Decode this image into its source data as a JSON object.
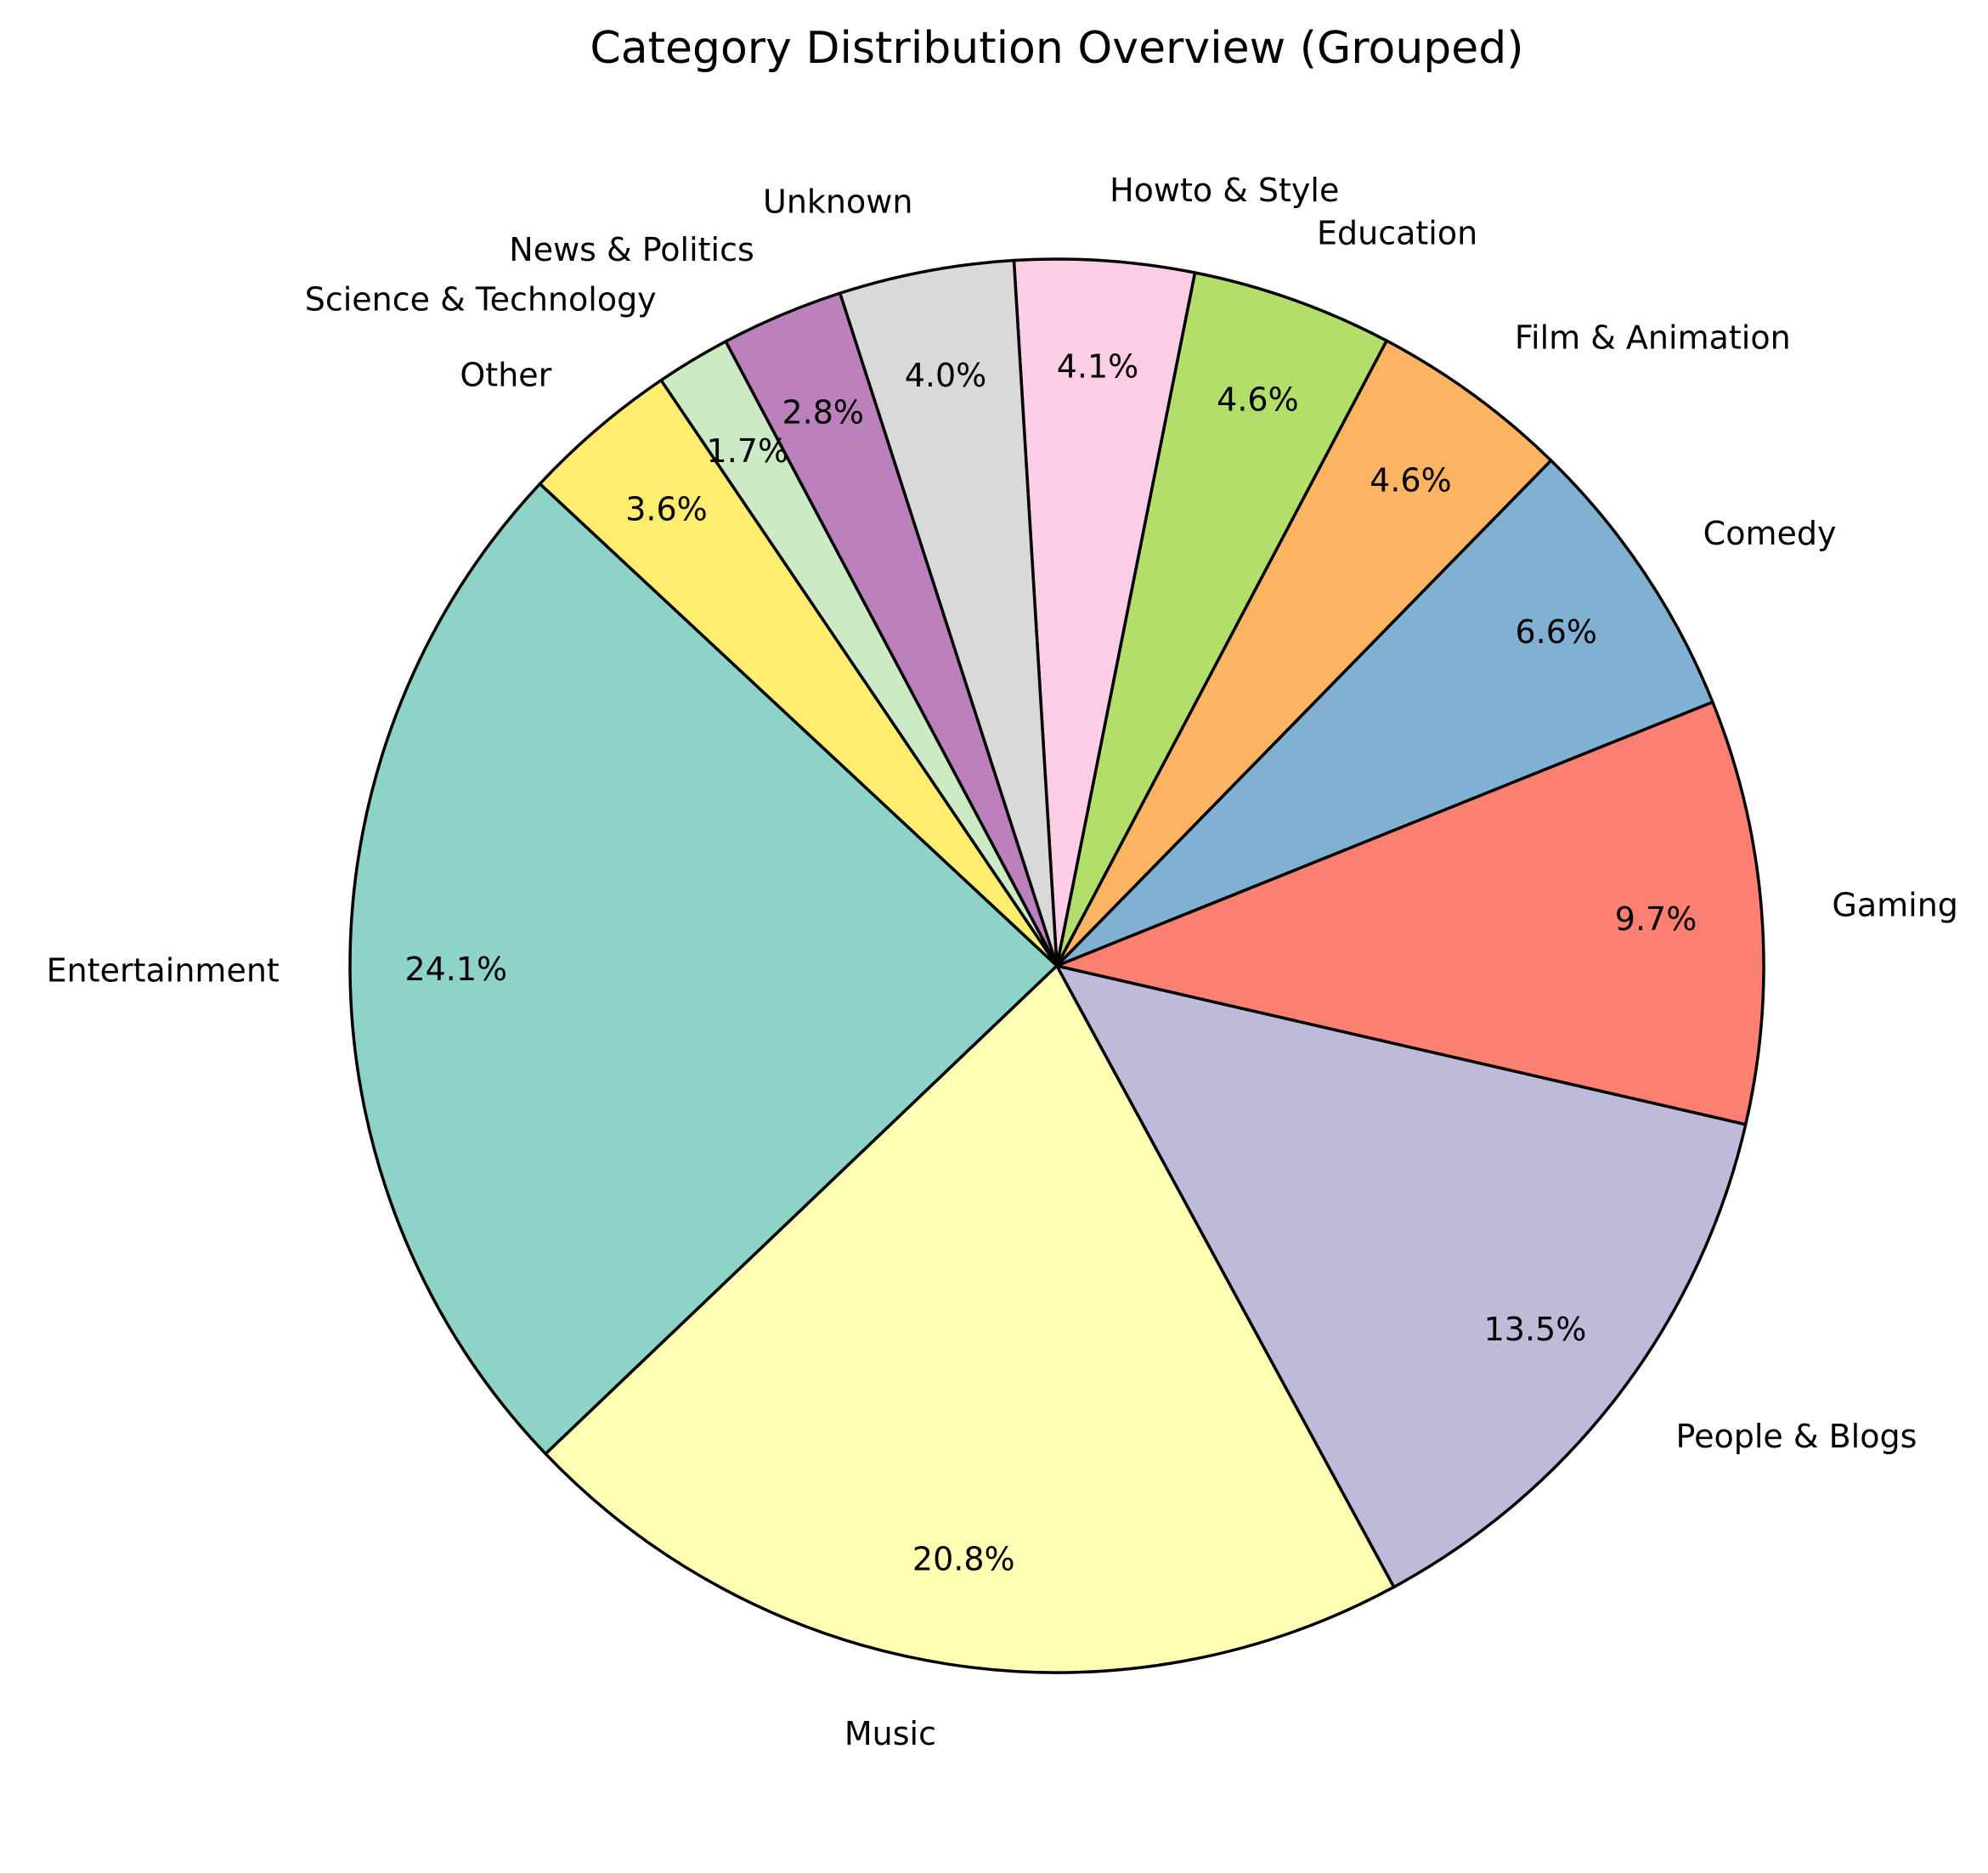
{
  "chart_data": {
    "type": "pie",
    "title": "Category Distribution Overview (Grouped)",
    "start_angle_deg": 137,
    "direction": "counterclockwise",
    "slices": [
      {
        "label": "Entertainment",
        "value": 24.1,
        "pct_label": "24.1%",
        "color": "#8dd3c7"
      },
      {
        "label": "Music",
        "value": 20.8,
        "pct_label": "20.8%",
        "color": "#ffffb3"
      },
      {
        "label": "People & Blogs",
        "value": 13.5,
        "pct_label": "13.5%",
        "color": "#bebada"
      },
      {
        "label": "Gaming",
        "value": 9.7,
        "pct_label": "9.7%",
        "color": "#fb8072"
      },
      {
        "label": "Comedy",
        "value": 6.6,
        "pct_label": "6.6%",
        "color": "#80b1d3"
      },
      {
        "label": "Film & Animation",
        "value": 4.6,
        "pct_label": "4.6%",
        "color": "#fdb462"
      },
      {
        "label": "Education",
        "value": 4.6,
        "pct_label": "4.6%",
        "color": "#b3de69"
      },
      {
        "label": "Howto & Style",
        "value": 4.1,
        "pct_label": "4.1%",
        "color": "#fccde5"
      },
      {
        "label": "Unknown",
        "value": 4.0,
        "pct_label": "4.0%",
        "color": "#d9d9d9"
      },
      {
        "label": "News & Politics",
        "value": 2.8,
        "pct_label": "2.8%",
        "color": "#bc80bd"
      },
      {
        "label": "Science & Technology",
        "value": 1.7,
        "pct_label": "1.7%",
        "color": "#ccebc5"
      },
      {
        "label": "Other",
        "value": 3.6,
        "pct_label": "3.6%",
        "color": "#ffed6f"
      }
    ]
  }
}
